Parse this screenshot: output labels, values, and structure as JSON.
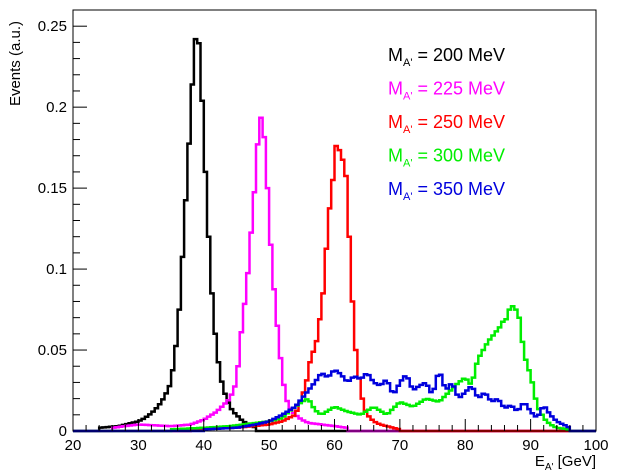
{
  "chart_data": {
    "type": "line",
    "title": "",
    "xlabel": {
      "main": "E",
      "sub": "A'",
      "unit": " [GeV]"
    },
    "ylabel": "Events (a.u.)",
    "xlim": [
      20,
      100
    ],
    "ylim": [
      0,
      0.26
    ],
    "xticks": [
      20,
      30,
      40,
      50,
      60,
      70,
      80,
      90,
      100
    ],
    "xtick_labels": [
      "20",
      "30",
      "40",
      "50",
      "60",
      "70",
      "80",
      "90",
      "100"
    ],
    "yticks": [
      0,
      0.05,
      0.1,
      0.15,
      0.2,
      0.25
    ],
    "ytick_labels": [
      "0",
      "0.05",
      "0.1",
      "0.15",
      "0.2",
      "0.25"
    ],
    "grid": false,
    "legend_position": "top-right",
    "bin_width": 0.5,
    "series": [
      {
        "name": "M_A' = 200 MeV",
        "legend": {
          "main": "M",
          "sub": "A'",
          "rest": " = 200 MeV"
        },
        "color": "#000000",
        "x": [
          24,
          27,
          29,
          30,
          31,
          32,
          33,
          34,
          35,
          35.5,
          36,
          36.5,
          37,
          37.5,
          38,
          38.5,
          39,
          39.5,
          40,
          40.5,
          41,
          41.5,
          42,
          42.5,
          43,
          43.5,
          44,
          44.5,
          45,
          45.5,
          46,
          47,
          48
        ],
        "y": [
          0.002,
          0.003,
          0.005,
          0.006,
          0.008,
          0.011,
          0.015,
          0.021,
          0.03,
          0.045,
          0.06,
          0.09,
          0.125,
          0.16,
          0.195,
          0.233,
          0.251,
          0.228,
          0.18,
          0.14,
          0.1,
          0.07,
          0.05,
          0.035,
          0.026,
          0.02,
          0.015,
          0.012,
          0.01,
          0.008,
          0.006,
          0.004,
          0.002
        ]
      },
      {
        "name": "M_A' = 225 MeV",
        "legend": {
          "main": "M",
          "sub": "A'",
          "rest": " = 225 MeV"
        },
        "color": "#ff00ff",
        "x": [
          26,
          30,
          35,
          38,
          40,
          42,
          44,
          45,
          45.5,
          46,
          46.5,
          47,
          47.5,
          48,
          48.5,
          49,
          49.5,
          50,
          50.5,
          51,
          51.5,
          52,
          52.5,
          53,
          54,
          55,
          56,
          58,
          60,
          62
        ],
        "y": [
          0.002,
          0.004,
          0.003,
          0.004,
          0.007,
          0.012,
          0.02,
          0.03,
          0.05,
          0.072,
          0.085,
          0.11,
          0.135,
          0.16,
          0.194,
          0.193,
          0.17,
          0.13,
          0.1,
          0.075,
          0.055,
          0.035,
          0.022,
          0.015,
          0.01,
          0.007,
          0.005,
          0.004,
          0.003,
          0.002
        ]
      },
      {
        "name": "M_A' = 250 MeV",
        "legend": {
          "main": "M",
          "sub": "A'",
          "rest": " = 250 MeV"
        },
        "color": "#ff0000",
        "x": [
          38,
          45,
          50,
          52,
          54,
          55,
          56,
          56.5,
          57,
          57.5,
          58,
          58.5,
          59,
          59.5,
          60,
          60.5,
          61,
          61.5,
          62,
          62.5,
          63,
          63.5,
          64,
          64.5,
          65,
          66,
          67,
          68,
          70
        ],
        "y": [
          0.001,
          0.002,
          0.004,
          0.006,
          0.01,
          0.02,
          0.035,
          0.05,
          0.048,
          0.063,
          0.075,
          0.095,
          0.13,
          0.145,
          0.165,
          0.187,
          0.16,
          0.175,
          0.14,
          0.1,
          0.06,
          0.04,
          0.025,
          0.015,
          0.01,
          0.006,
          0.004,
          0.003,
          0.001
        ]
      },
      {
        "name": "M_A' = 300 MeV",
        "legend": {
          "main": "M",
          "sub": "A'",
          "rest": " = 300 MeV"
        },
        "color": "#00ee00",
        "x": [
          35,
          40,
          44,
          48,
          50,
          52,
          53,
          54,
          55,
          56,
          57,
          58,
          60,
          62,
          64,
          66,
          68,
          70,
          72,
          74,
          76,
          77,
          78,
          79,
          80,
          81,
          81.5,
          82,
          82.5,
          83,
          83.5,
          84,
          84.5,
          85,
          85.5,
          86,
          86.5,
          87,
          87.5,
          88,
          88.5,
          89,
          89.5,
          90,
          90.5,
          91,
          91.5,
          92,
          93,
          94,
          96
        ],
        "y": [
          0.001,
          0.002,
          0.003,
          0.005,
          0.006,
          0.008,
          0.012,
          0.015,
          0.018,
          0.02,
          0.013,
          0.01,
          0.015,
          0.012,
          0.01,
          0.015,
          0.01,
          0.018,
          0.015,
          0.02,
          0.018,
          0.022,
          0.026,
          0.03,
          0.033,
          0.028,
          0.038,
          0.045,
          0.048,
          0.052,
          0.055,
          0.058,
          0.06,
          0.063,
          0.065,
          0.07,
          0.068,
          0.082,
          0.072,
          0.078,
          0.062,
          0.048,
          0.04,
          0.035,
          0.025,
          0.015,
          0.012,
          0.008,
          0.004,
          0.002,
          0.001
        ]
      },
      {
        "name": "M_A' = 350 MeV",
        "legend": {
          "main": "M",
          "sub": "A'",
          "rest": " = 350 MeV"
        },
        "color": "#0000dd",
        "x": [
          40,
          45,
          48,
          50,
          52,
          54,
          55,
          56,
          57,
          58,
          59,
          60,
          61,
          62,
          63,
          64,
          65,
          66,
          67,
          68,
          69,
          70,
          71,
          72,
          73,
          74,
          75,
          76,
          77,
          78,
          79,
          80,
          81,
          82,
          83,
          84,
          85,
          86,
          87,
          88,
          89,
          90,
          91,
          92,
          93,
          94,
          95,
          96
        ],
        "y": [
          0.001,
          0.002,
          0.004,
          0.006,
          0.01,
          0.015,
          0.02,
          0.025,
          0.03,
          0.036,
          0.033,
          0.038,
          0.035,
          0.03,
          0.034,
          0.032,
          0.036,
          0.03,
          0.028,
          0.032,
          0.022,
          0.03,
          0.035,
          0.025,
          0.028,
          0.03,
          0.022,
          0.038,
          0.025,
          0.03,
          0.02,
          0.024,
          0.028,
          0.02,
          0.024,
          0.018,
          0.02,
          0.014,
          0.016,
          0.012,
          0.018,
          0.012,
          0.008,
          0.016,
          0.01,
          0.006,
          0.004,
          0.002
        ]
      }
    ]
  }
}
